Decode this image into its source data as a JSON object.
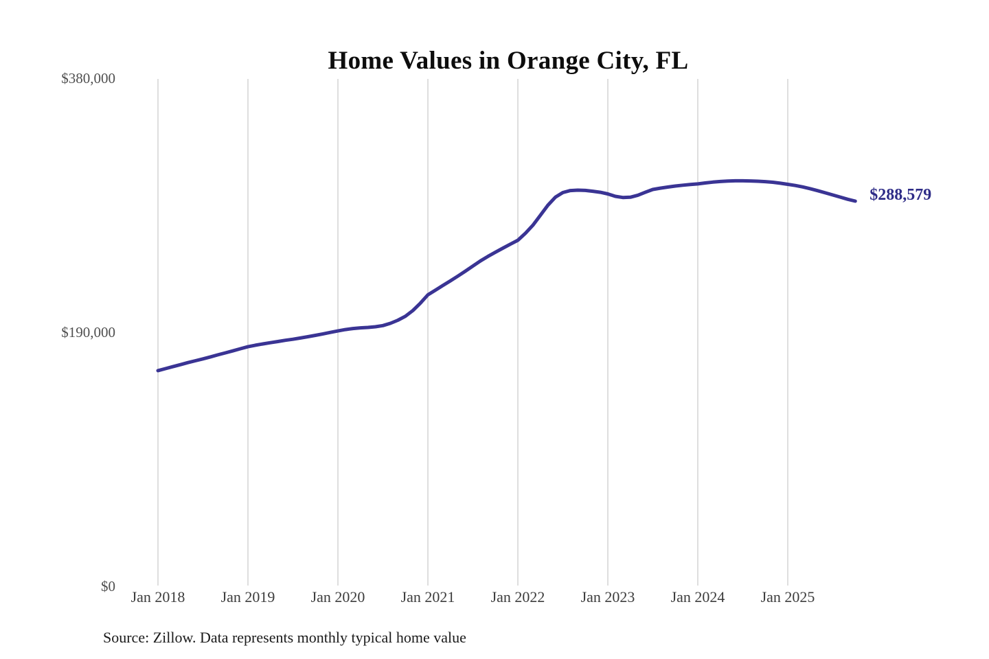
{
  "title": "Home Values in Orange City, FL",
  "source_note": "Source: Zillow. Data represents monthly typical home value",
  "colors": {
    "background": "#ffffff",
    "line": "#3a3494",
    "end_label": "#2e2c87",
    "gridline": "#cccccc",
    "title": "#0d0d0d",
    "y_axis_label": "#4f4f4f",
    "x_axis_label": "#3c3c3c",
    "source_text": "#1a1a1a"
  },
  "chart_data": {
    "type": "line",
    "title": "Home Values in Orange City, FL",
    "xlabel": "",
    "ylabel": "",
    "ylim": [
      0,
      380000
    ],
    "grid": "vertical-only",
    "legend_position": "none",
    "x_start": "2018-01",
    "x_end": "2025-10",
    "frequency": "monthly",
    "end_value": 288579,
    "end_label": "$288,579",
    "y_ticks": [
      {
        "value": 0,
        "label": "$0"
      },
      {
        "value": 190000,
        "label": "$190,000"
      },
      {
        "value": 380000,
        "label": "$380,000"
      }
    ],
    "x_ticks": [
      {
        "month_index": 0,
        "label": "Jan 2018"
      },
      {
        "month_index": 12,
        "label": "Jan 2019"
      },
      {
        "month_index": 24,
        "label": "Jan 2020"
      },
      {
        "month_index": 36,
        "label": "Jan 2021"
      },
      {
        "month_index": 48,
        "label": "Jan 2022"
      },
      {
        "month_index": 60,
        "label": "Jan 2023"
      },
      {
        "month_index": 72,
        "label": "Jan 2024"
      },
      {
        "month_index": 84,
        "label": "Jan 2025"
      }
    ],
    "series": [
      {
        "name": "Monthly typical home value",
        "values": [
          161800,
          163300,
          164800,
          166300,
          167800,
          169200,
          170600,
          172100,
          173600,
          175100,
          176600,
          178200,
          179700,
          180800,
          181800,
          182700,
          183600,
          184500,
          185300,
          186200,
          187200,
          188200,
          189300,
          190400,
          191500,
          192500,
          193300,
          193800,
          194100,
          194600,
          195500,
          197200,
          199500,
          202500,
          206800,
          212300,
          218500,
          222000,
          225500,
          229000,
          232500,
          236200,
          240000,
          243800,
          247200,
          250400,
          253400,
          256400,
          259300,
          264500,
          270500,
          278000,
          285500,
          291500,
          295000,
          296500,
          296800,
          296600,
          296000,
          295200,
          294000,
          292200,
          291300,
          291500,
          293000,
          295200,
          297300,
          298300,
          299100,
          299900,
          300500,
          301000,
          301500,
          302200,
          302800,
          303300,
          303600,
          303800,
          303800,
          303700,
          303500,
          303200,
          302700,
          302000,
          301200,
          300300,
          299200,
          297900,
          296400,
          294800,
          293200,
          291600,
          290000,
          288579
        ]
      }
    ]
  }
}
